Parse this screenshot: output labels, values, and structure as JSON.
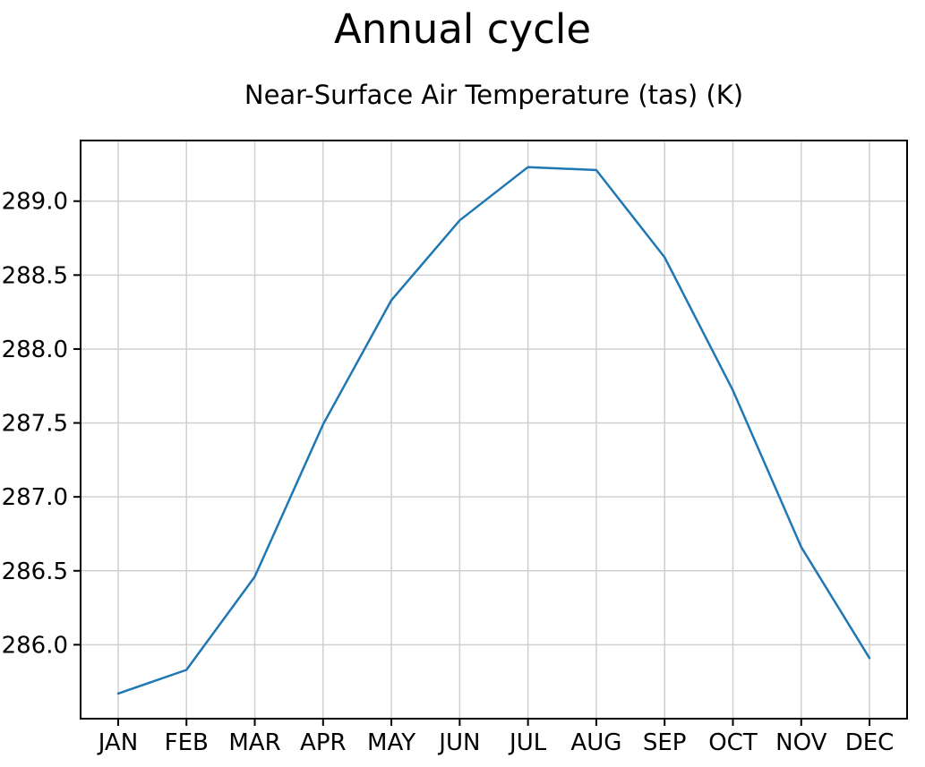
{
  "chart_data": {
    "type": "line",
    "suptitle": "Annual cycle",
    "title": "Near-Surface Air Temperature (tas) (K)",
    "xlabel": "",
    "ylabel": "",
    "categories": [
      "JAN",
      "FEB",
      "MAR",
      "APR",
      "MAY",
      "JUN",
      "JUL",
      "AUG",
      "SEP",
      "OCT",
      "NOV",
      "DEC"
    ],
    "series": [
      {
        "name": "Near-Surface Air Temperature (tas) (K)",
        "values": [
          285.67,
          285.83,
          286.46,
          287.49,
          288.33,
          288.87,
          289.23,
          289.21,
          288.62,
          287.72,
          286.66,
          285.91
        ],
        "color": "#1f77b4"
      }
    ],
    "ylim": [
      285.5,
      289.41
    ],
    "yticks": [
      286.0,
      286.5,
      287.0,
      287.5,
      288.0,
      288.5,
      289.0
    ],
    "ytick_labels": [
      "286.0",
      "286.5",
      "287.0",
      "287.5",
      "288.0",
      "288.5",
      "289.0"
    ],
    "grid": true,
    "legend_position": "none",
    "colors": {
      "line": "#1f77b4",
      "grid": "#d0d0d0",
      "spine": "#000000",
      "background": "#ffffff"
    }
  }
}
